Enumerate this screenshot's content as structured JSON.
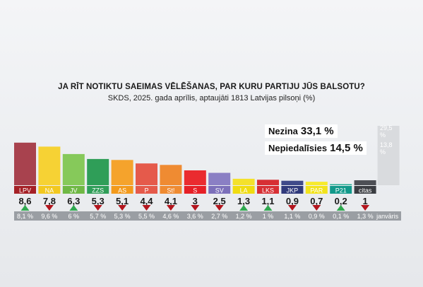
{
  "header": {
    "title": "JA RĪT NOTIKTU SAEIMAS VĒLĒŠANAS, PAR KURU PARTIJU JŪS BALSOTU?",
    "subtitle": "SKDS, 2025. gada aprīlis, aptaujāti 1813 Latvijas pilsoņi (%)"
  },
  "side": {
    "undecided": {
      "label": "Nezina",
      "value": "33,1 %",
      "prev": "29,5 %"
    },
    "nonvoter": {
      "label": "Nepiedalīsies",
      "value": "14,5 %",
      "prev": "13,8 %"
    }
  },
  "prev_label": "janvāris",
  "colors": {
    "up": "#2fa84f",
    "down": "#b3151d",
    "label_bg": "#a52026",
    "prev_band": "#9a9ea3",
    "side_band": "#d9dbde"
  },
  "chart_data": {
    "type": "bar",
    "categories": [
      "LPV",
      "NA",
      "JV",
      "ZZS",
      "AS",
      "P",
      "St!",
      "S",
      "SV",
      "LA",
      "LKS",
      "JKP",
      "PAR",
      "P21",
      "citas"
    ],
    "values": [
      8.6,
      7.8,
      6.3,
      5.3,
      5.1,
      4.4,
      4.1,
      3,
      2.5,
      1.3,
      1.1,
      0.9,
      0.7,
      0.2,
      1
    ],
    "value_labels": [
      "8,6",
      "7,8",
      "6,3",
      "5,3",
      "5,1",
      "4,4",
      "4,1",
      "3",
      "2,5",
      "1,3",
      "1,1",
      "0,9",
      "0,7",
      "0,2",
      "1"
    ],
    "previous": [
      "8,1 %",
      "9,6 %",
      "6 %",
      "5,7 %",
      "5,3 %",
      "5,5 %",
      "4,6 %",
      "3,6 %",
      "2,7 %",
      "1,2 %",
      "1 %",
      "1,1 %",
      "0,9 %",
      "0,1 %",
      "1,3 %"
    ],
    "trend": [
      "up",
      "down",
      "up",
      "down",
      "down",
      "down",
      "down",
      "down",
      "down",
      "up",
      "up",
      "down",
      "down",
      "up",
      "down"
    ],
    "bar_colors": [
      "#a8424e",
      "#f6d234",
      "#86c95a",
      "#2f9e58",
      "#f5a32c",
      "#e55a4b",
      "#ef8b32",
      "#ea2b2f",
      "#8a7fc4",
      "#f4e12b",
      "#d72f34",
      "#3f4a8a",
      "#f7ea2d",
      "#18a88e",
      "#4d4f55"
    ],
    "label_colors": [
      "#a52026",
      "#f2c81f",
      "#6fb844",
      "#2f9e58",
      "#f39a1c",
      "#e55a4b",
      "#ef8b32",
      "#e61f26",
      "#7c70ba",
      "#f0dc10",
      "#d72f34",
      "#303a7c",
      "#f2e31c",
      "#12998a",
      "#3b3d42"
    ]
  }
}
